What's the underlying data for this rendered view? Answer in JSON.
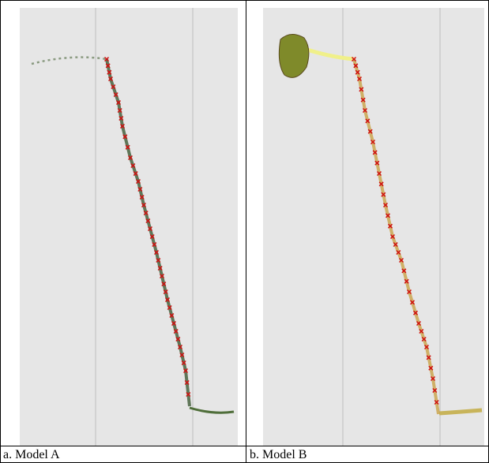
{
  "figure": {
    "panels": [
      {
        "caption": "a. Model A"
      },
      {
        "caption": "b. Model B"
      }
    ]
  }
}
